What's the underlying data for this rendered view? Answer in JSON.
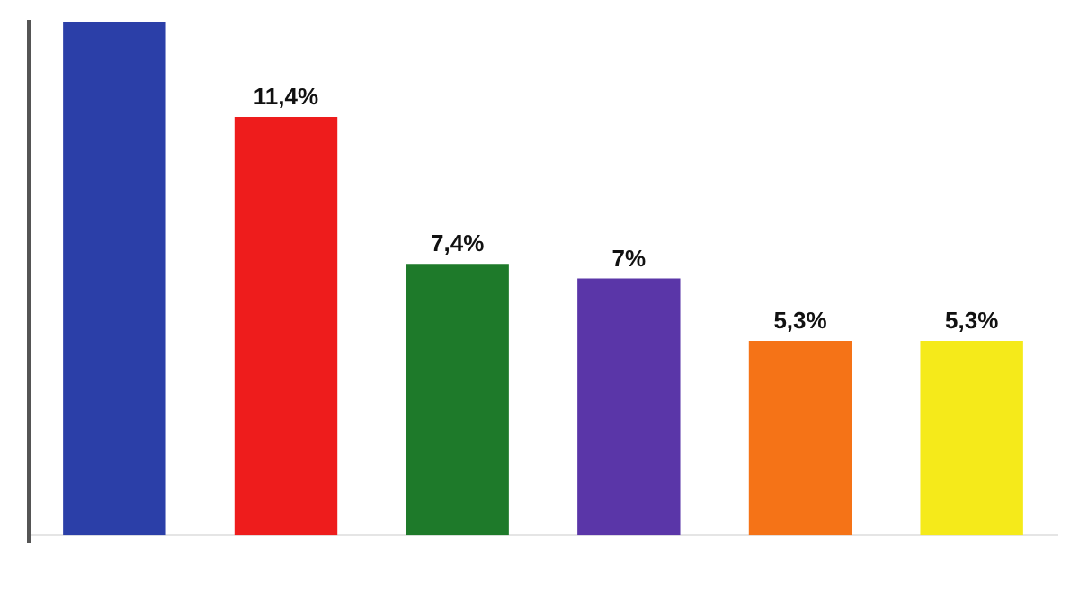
{
  "chart_data": {
    "type": "bar",
    "categories": [
      null,
      null,
      null,
      null,
      null,
      null
    ],
    "values": [
      14,
      11.4,
      7.4,
      7,
      5.3,
      5.3
    ],
    "colors": [
      "#2b3fa8",
      "#ee1c1c",
      "#1e7a2a",
      "#5a36a8",
      "#f57317",
      "#f5ea1a"
    ],
    "value_labels": [
      null,
      "11,4%",
      "7,4%",
      "7%",
      "5,3%",
      "5,3%"
    ],
    "ylim": [
      0,
      14
    ],
    "legend": false
  }
}
